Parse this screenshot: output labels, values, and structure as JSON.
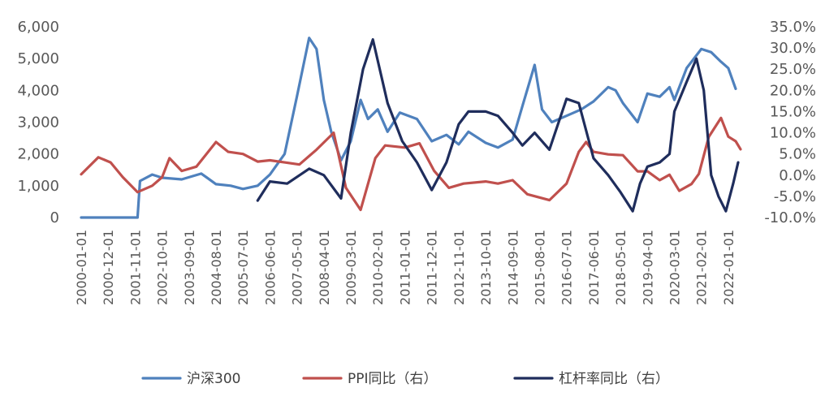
{
  "chart_data": {
    "type": "line",
    "title": "",
    "xlabel": "",
    "ylabel": "",
    "y_left": {
      "ticks": [
        0,
        1000,
        2000,
        3000,
        4000,
        5000,
        6000
      ],
      "tick_labels": [
        "0",
        "1,000",
        "2,000",
        "3,000",
        "4,000",
        "5,000",
        "6,000"
      ],
      "ylim": [
        0,
        6000
      ]
    },
    "y_right": {
      "ticks": [
        -10,
        -5,
        0,
        5,
        10,
        15,
        20,
        25,
        30,
        35
      ],
      "tick_labels": [
        "-10.0%",
        "-5.0%",
        "0.0%",
        "5.0%",
        "10.0%",
        "15.0%",
        "20.0%",
        "25.0%",
        "30.0%",
        "35.0%"
      ],
      "ylim": [
        -10,
        35
      ]
    },
    "x_ticks": [
      "2000-01-01",
      "2000-12-01",
      "2001-11-01",
      "2002-10-01",
      "2003-09-01",
      "2004-08-01",
      "2005-07-01",
      "2006-06-01",
      "2007-05-01",
      "2008-04-01",
      "2009-03-01",
      "2010-02-01",
      "2011-01-01",
      "2011-12-01",
      "2012-11-01",
      "2013-10-01",
      "2014-09-01",
      "2015-08-01",
      "2016-07-01",
      "2017-06-01",
      "2018-05-01",
      "2019-04-01",
      "2020-03-01",
      "2021-02-01",
      "2022-01-01"
    ],
    "grid": false,
    "legend_position": "bottom",
    "series": [
      {
        "name": "沪深300",
        "axis": "left",
        "color": "#4F81BD",
        "points": [
          [
            "2000-01-01",
            0
          ],
          [
            "2001-12-01",
            0
          ],
          [
            "2002-01-01",
            1150
          ],
          [
            "2002-06-01",
            1350
          ],
          [
            "2002-10-01",
            1250
          ],
          [
            "2003-06-01",
            1200
          ],
          [
            "2004-02-01",
            1380
          ],
          [
            "2004-08-01",
            1050
          ],
          [
            "2005-02-01",
            1000
          ],
          [
            "2005-07-01",
            900
          ],
          [
            "2006-01-01",
            1000
          ],
          [
            "2006-06-01",
            1350
          ],
          [
            "2006-12-01",
            2000
          ],
          [
            "2007-05-01",
            3800
          ],
          [
            "2007-10-01",
            5650
          ],
          [
            "2008-01-01",
            5300
          ],
          [
            "2008-04-01",
            3700
          ],
          [
            "2008-07-01",
            2700
          ],
          [
            "2008-11-01",
            1800
          ],
          [
            "2009-03-01",
            2400
          ],
          [
            "2009-07-01",
            3700
          ],
          [
            "2009-10-01",
            3100
          ],
          [
            "2010-02-01",
            3400
          ],
          [
            "2010-06-01",
            2700
          ],
          [
            "2010-11-01",
            3300
          ],
          [
            "2011-06-01",
            3100
          ],
          [
            "2011-12-01",
            2400
          ],
          [
            "2012-06-01",
            2600
          ],
          [
            "2012-11-01",
            2300
          ],
          [
            "2013-03-01",
            2700
          ],
          [
            "2013-10-01",
            2350
          ],
          [
            "2014-03-01",
            2200
          ],
          [
            "2014-09-01",
            2450
          ],
          [
            "2015-01-01",
            3500
          ],
          [
            "2015-06-01",
            4800
          ],
          [
            "2015-09-01",
            3400
          ],
          [
            "2016-01-01",
            3000
          ],
          [
            "2016-07-01",
            3200
          ],
          [
            "2017-01-01",
            3400
          ],
          [
            "2017-06-01",
            3650
          ],
          [
            "2017-12-01",
            4100
          ],
          [
            "2018-03-01",
            4000
          ],
          [
            "2018-06-01",
            3600
          ],
          [
            "2018-12-01",
            3000
          ],
          [
            "2019-04-01",
            3900
          ],
          [
            "2019-09-01",
            3800
          ],
          [
            "2020-01-01",
            4100
          ],
          [
            "2020-03-01",
            3700
          ],
          [
            "2020-08-01",
            4700
          ],
          [
            "2021-02-01",
            5300
          ],
          [
            "2021-06-01",
            5200
          ],
          [
            "2021-10-01",
            4900
          ],
          [
            "2022-01-01",
            4700
          ],
          [
            "2022-04-01",
            4050
          ]
        ]
      },
      {
        "name": "PPI同比（右）",
        "axis": "right",
        "color": "#C0504D",
        "points": [
          [
            "2000-01-01",
            0.2
          ],
          [
            "2000-05-01",
            2.5
          ],
          [
            "2000-08-01",
            4.2
          ],
          [
            "2001-01-01",
            3.0
          ],
          [
            "2001-06-01",
            -0.5
          ],
          [
            "2001-12-01",
            -4.0
          ],
          [
            "2002-06-01",
            -2.5
          ],
          [
            "2002-10-01",
            -0.5
          ],
          [
            "2003-01-01",
            4.0
          ],
          [
            "2003-06-01",
            1.0
          ],
          [
            "2003-12-01",
            2.0
          ],
          [
            "2004-08-01",
            7.8
          ],
          [
            "2005-01-01",
            5.5
          ],
          [
            "2005-07-01",
            5.0
          ],
          [
            "2006-01-01",
            3.2
          ],
          [
            "2006-06-01",
            3.5
          ],
          [
            "2006-12-01",
            3.0
          ],
          [
            "2007-06-01",
            2.5
          ],
          [
            "2008-01-01",
            6.0
          ],
          [
            "2008-08-01",
            10.0
          ],
          [
            "2009-01-01",
            -3.0
          ],
          [
            "2009-07-01",
            -8.2
          ],
          [
            "2010-01-01",
            4.0
          ],
          [
            "2010-05-01",
            7.0
          ],
          [
            "2011-01-01",
            6.5
          ],
          [
            "2011-07-01",
            7.5
          ],
          [
            "2012-01-01",
            1.0
          ],
          [
            "2012-07-01",
            -3.0
          ],
          [
            "2013-01-01",
            -2.0
          ],
          [
            "2013-10-01",
            -1.5
          ],
          [
            "2014-03-01",
            -2.0
          ],
          [
            "2014-09-01",
            -1.2
          ],
          [
            "2015-03-01",
            -4.5
          ],
          [
            "2015-12-01",
            -5.9
          ],
          [
            "2016-07-01",
            -2.0
          ],
          [
            "2016-12-01",
            5.5
          ],
          [
            "2017-03-01",
            7.8
          ],
          [
            "2017-06-01",
            5.5
          ],
          [
            "2017-12-01",
            4.9
          ],
          [
            "2018-06-01",
            4.7
          ],
          [
            "2018-12-01",
            0.9
          ],
          [
            "2019-04-01",
            0.9
          ],
          [
            "2019-09-01",
            -1.2
          ],
          [
            "2020-01-01",
            0.1
          ],
          [
            "2020-05-01",
            -3.7
          ],
          [
            "2020-10-01",
            -2.1
          ],
          [
            "2021-01-01",
            0.3
          ],
          [
            "2021-05-01",
            9.0
          ],
          [
            "2021-10-01",
            13.5
          ],
          [
            "2022-01-01",
            9.1
          ],
          [
            "2022-04-01",
            8.0
          ],
          [
            "2022-06-01",
            6.1
          ]
        ]
      },
      {
        "name": "杠杆率同比（右）",
        "axis": "right",
        "color": "#1F2D5C",
        "points": [
          [
            "2006-01-01",
            -6.0
          ],
          [
            "2006-06-01",
            -1.5
          ],
          [
            "2007-01-01",
            -2.0
          ],
          [
            "2007-10-01",
            1.5
          ],
          [
            "2008-04-01",
            0.0
          ],
          [
            "2008-11-01",
            -5.5
          ],
          [
            "2009-03-01",
            10.0
          ],
          [
            "2009-08-01",
            25.0
          ],
          [
            "2009-12-01",
            32.0
          ],
          [
            "2010-06-01",
            17.0
          ],
          [
            "2010-12-01",
            8.0
          ],
          [
            "2011-06-01",
            3.0
          ],
          [
            "2011-12-01",
            -3.5
          ],
          [
            "2012-06-01",
            3.0
          ],
          [
            "2012-11-01",
            12.0
          ],
          [
            "2013-03-01",
            15.0
          ],
          [
            "2013-10-01",
            15.0
          ],
          [
            "2014-03-01",
            14.0
          ],
          [
            "2014-09-01",
            10.0
          ],
          [
            "2015-01-01",
            7.0
          ],
          [
            "2015-06-01",
            10.0
          ],
          [
            "2015-12-01",
            6.0
          ],
          [
            "2016-07-01",
            18.0
          ],
          [
            "2016-12-01",
            17.0
          ],
          [
            "2017-06-01",
            4.0
          ],
          [
            "2017-12-01",
            0.0
          ],
          [
            "2018-05-01",
            -4.0
          ],
          [
            "2018-10-01",
            -8.5
          ],
          [
            "2019-01-01",
            -2.0
          ],
          [
            "2019-04-01",
            2.0
          ],
          [
            "2019-09-01",
            3.0
          ],
          [
            "2020-01-01",
            5.0
          ],
          [
            "2020-03-01",
            15.0
          ],
          [
            "2020-08-01",
            22.0
          ],
          [
            "2020-12-01",
            27.5
          ],
          [
            "2021-03-01",
            20.0
          ],
          [
            "2021-06-01",
            0.0
          ],
          [
            "2021-09-01",
            -5.0
          ],
          [
            "2021-12-01",
            -8.5
          ],
          [
            "2022-03-01",
            -2.0
          ],
          [
            "2022-05-01",
            3.0
          ]
        ]
      }
    ]
  }
}
